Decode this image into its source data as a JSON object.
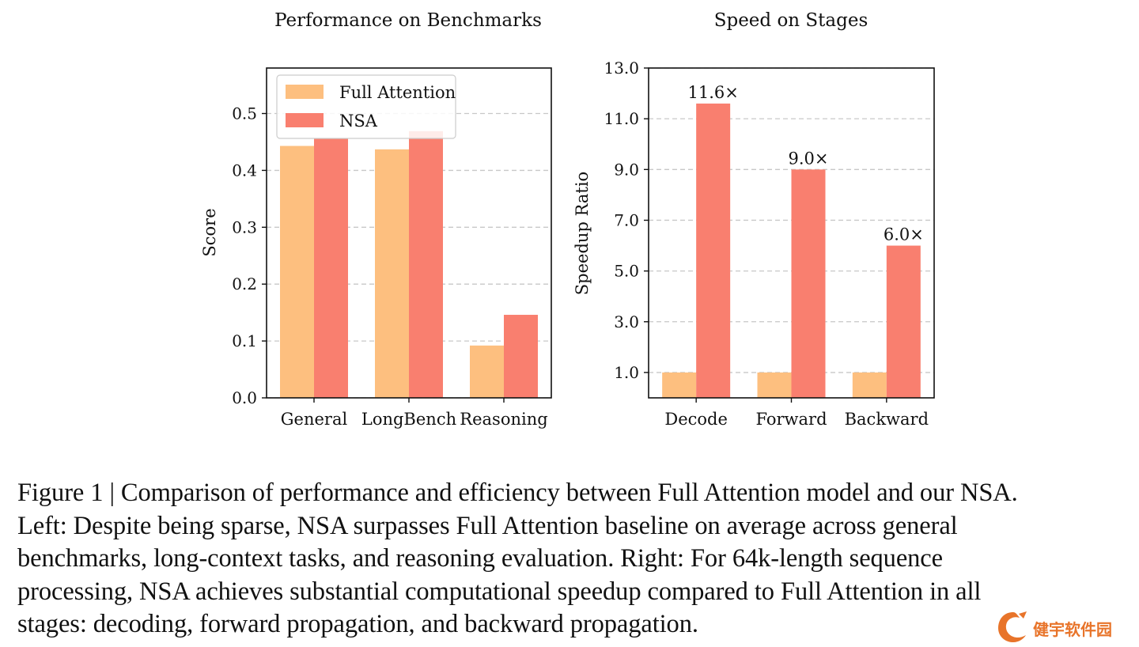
{
  "colors": {
    "full_attention": "#fdbf7f",
    "nsa": "#f97f6f",
    "grid": "#c8c8c8",
    "axis": "#111111",
    "watermark": "#e8742a"
  },
  "chart_data": [
    {
      "type": "bar",
      "title": "Performance on Benchmarks",
      "xlabel": "",
      "ylabel": "Score",
      "categories": [
        "General",
        "LongBench",
        "Reasoning"
      ],
      "series": [
        {
          "name": "Full Attention",
          "values": [
            0.443,
            0.437,
            0.092
          ]
        },
        {
          "name": "NSA",
          "values": [
            0.456,
            0.469,
            0.146
          ]
        }
      ],
      "ylim": [
        0,
        0.58
      ],
      "yticks": [
        0.0,
        0.1,
        0.2,
        0.3,
        0.4,
        0.5
      ],
      "ytick_labels": [
        "0.0",
        "0.1",
        "0.2",
        "0.3",
        "0.4",
        "0.5"
      ],
      "grid": true,
      "legend": "top-left"
    },
    {
      "type": "bar",
      "title": "Speed on Stages",
      "xlabel": "",
      "ylabel": "Speedup Ratio",
      "categories": [
        "Decode",
        "Forward",
        "Backward"
      ],
      "series": [
        {
          "name": "Full Attention",
          "values": [
            1.0,
            1.0,
            1.0
          ]
        },
        {
          "name": "NSA",
          "values": [
            11.6,
            9.0,
            6.0
          ]
        }
      ],
      "data_labels": [
        "11.6×",
        "9.0×",
        "6.0×"
      ],
      "ylim": [
        0,
        13.0
      ],
      "yticks": [
        1.0,
        3.0,
        5.0,
        7.0,
        9.0,
        11.0,
        13.0
      ],
      "ytick_labels": [
        "1.0",
        "3.0",
        "5.0",
        "7.0",
        "9.0",
        "11.0",
        "13.0"
      ],
      "grid": true,
      "legend": "none"
    }
  ],
  "caption": {
    "lines": [
      "Figure 1 | Comparison of performance and efficiency between Full Attention model and our NSA.",
      "Left: Despite being sparse, NSA surpasses Full Attention baseline on average across general",
      "benchmarks, long-context tasks, and reasoning evaluation. Right: For 64k-length sequence",
      "processing, NSA achieves substantial computational speedup compared to Full Attention in all",
      "stages: decoding, forward propagation, and backward propagation."
    ]
  },
  "watermark": {
    "text": "健宇软件园"
  }
}
